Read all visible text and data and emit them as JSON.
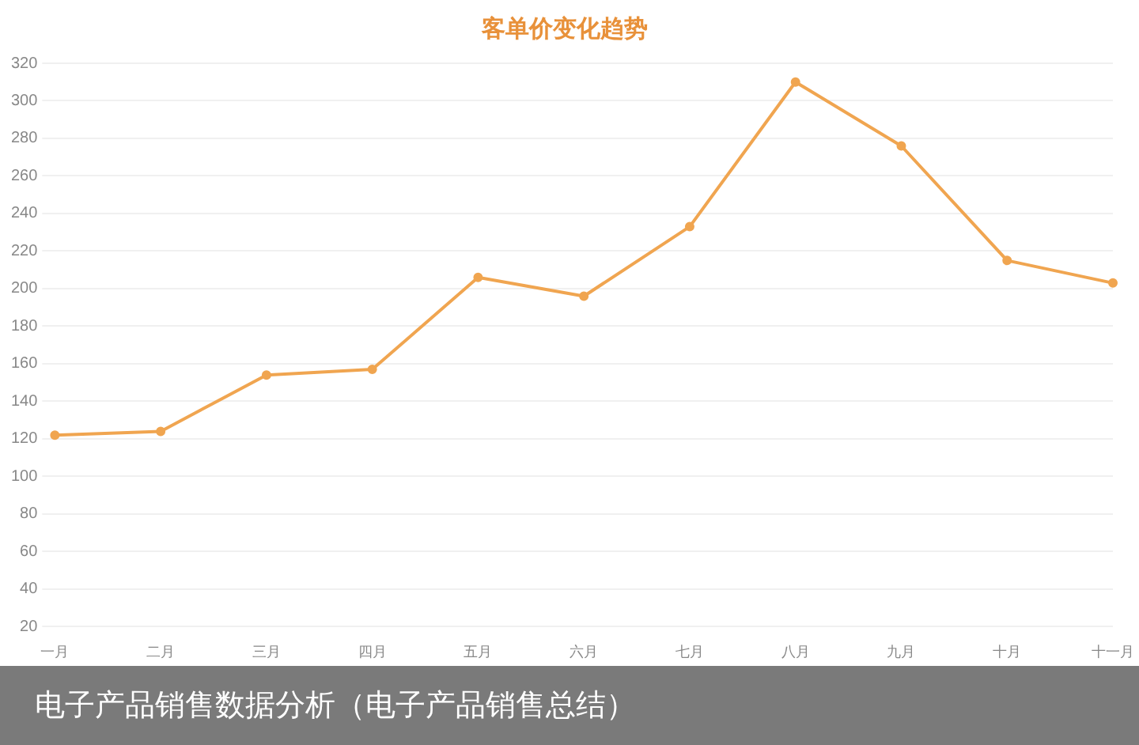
{
  "chart_data": {
    "type": "line",
    "title": "客单价变化趋势",
    "categories": [
      "一月",
      "二月",
      "三月",
      "四月",
      "五月",
      "六月",
      "七月",
      "八月",
      "九月",
      "十月",
      "十一月"
    ],
    "series": [
      {
        "color": "#f0a550",
        "values": [
          122,
          124,
          154,
          157,
          206,
          196,
          233,
          310,
          276,
          215,
          203
        ]
      }
    ],
    "ylim": [
      20,
      320
    ],
    "yticks": [
      20,
      40,
      60,
      80,
      100,
      120,
      140,
      160,
      180,
      200,
      220,
      240,
      260,
      280,
      300,
      320
    ],
    "grid": "y",
    "legend": false,
    "marker": "circle",
    "line_style": "solid",
    "annotations": [
      "电子产品销售数据分析（电子产品销售总结）"
    ]
  }
}
